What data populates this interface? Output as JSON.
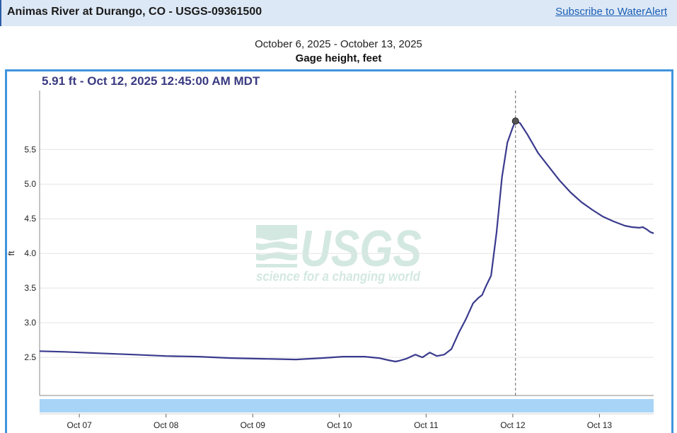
{
  "header": {
    "title": "Animas River at Durango, CO - USGS-09361500",
    "subscribe_label": "Subscribe to WaterAlert"
  },
  "date_range": "October 6, 2025 - October 13, 2025",
  "parameter_label": "Gage height, feet",
  "tooltip": "5.91 ft - Oct 12, 2025 12:45:00 AM MDT",
  "watermark": {
    "logo_text": "USGS",
    "tagline": "science for a changing world"
  },
  "colors": {
    "line": "#3a3a8e",
    "frame": "#3f94de",
    "header_bg": "#dde8f6",
    "brush": "#a8d4f7",
    "link": "#1a5fb4"
  },
  "chart_data": {
    "type": "line",
    "title": "Gage height, feet",
    "ylabel": "ft",
    "xlim": [
      "2025-10-06T13:00",
      "2025-10-13T15:00"
    ],
    "ylim": [
      1.95,
      6.35
    ],
    "y_ticks": [
      2.5,
      3.0,
      3.5,
      4.0,
      4.5,
      5.0,
      5.5
    ],
    "y_tick_labels": [
      "2.5",
      "3.0",
      "3.5",
      "4.0",
      "4.5",
      "5.0",
      "5.5"
    ],
    "x_ticks": [
      "2025-10-07",
      "2025-10-08",
      "2025-10-09",
      "2025-10-10",
      "2025-10-11",
      "2025-10-12",
      "2025-10-13"
    ],
    "x_tick_labels": [
      "Oct 07",
      "Oct 08",
      "Oct 09",
      "Oct 10",
      "Oct 11",
      "Oct 12",
      "Oct 13"
    ],
    "grid": true,
    "highlight": {
      "x": "2025-10-12T00:45",
      "y": 5.91
    },
    "series": [
      {
        "x": [
          "2025-10-06T13:00",
          "2025-10-06T20:00",
          "2025-10-07T05:00",
          "2025-10-07T15:00",
          "2025-10-08T00:00",
          "2025-10-08T09:00",
          "2025-10-08T18:00",
          "2025-10-09T03:00",
          "2025-10-09T12:00",
          "2025-10-09T19:00",
          "2025-10-10T01:00",
          "2025-10-10T07:00",
          "2025-10-10T11:00",
          "2025-10-10T13:30",
          "2025-10-10T14:30",
          "2025-10-10T15:30",
          "2025-10-10T16:30",
          "2025-10-10T18:30",
          "2025-10-10T21:00",
          "2025-10-10T23:00",
          "2025-10-11T01:00",
          "2025-10-11T03:00",
          "2025-10-11T05:00",
          "2025-10-11T07:00",
          "2025-10-11T09:00",
          "2025-10-11T11:00",
          "2025-10-11T13:00",
          "2025-10-11T14:30",
          "2025-10-11T15:30",
          "2025-10-11T16:30",
          "2025-10-11T18:00",
          "2025-10-11T19:30",
          "2025-10-11T21:00",
          "2025-10-11T22:30",
          "2025-10-12T00:00",
          "2025-10-12T00:45",
          "2025-10-12T02:00",
          "2025-10-12T04:00",
          "2025-10-12T07:00",
          "2025-10-12T10:00",
          "2025-10-12T13:00",
          "2025-10-12T16:00",
          "2025-10-12T19:00",
          "2025-10-12T22:00",
          "2025-10-13T01:00",
          "2025-10-13T04:00",
          "2025-10-13T07:00",
          "2025-10-13T09:00",
          "2025-10-13T11:00",
          "2025-10-13T12:00",
          "2025-10-13T13:00",
          "2025-10-13T14:00",
          "2025-10-13T15:00"
        ],
        "y": [
          2.59,
          2.58,
          2.56,
          2.54,
          2.52,
          2.51,
          2.49,
          2.48,
          2.47,
          2.49,
          2.51,
          2.51,
          2.49,
          2.46,
          2.45,
          2.44,
          2.45,
          2.48,
          2.54,
          2.5,
          2.57,
          2.52,
          2.54,
          2.62,
          2.85,
          3.05,
          3.28,
          3.36,
          3.4,
          3.52,
          3.68,
          4.3,
          5.1,
          5.6,
          5.82,
          5.91,
          5.88,
          5.72,
          5.45,
          5.25,
          5.05,
          4.88,
          4.74,
          4.63,
          4.53,
          4.46,
          4.4,
          4.38,
          4.37,
          4.38,
          4.35,
          4.31,
          4.29
        ]
      }
    ]
  }
}
